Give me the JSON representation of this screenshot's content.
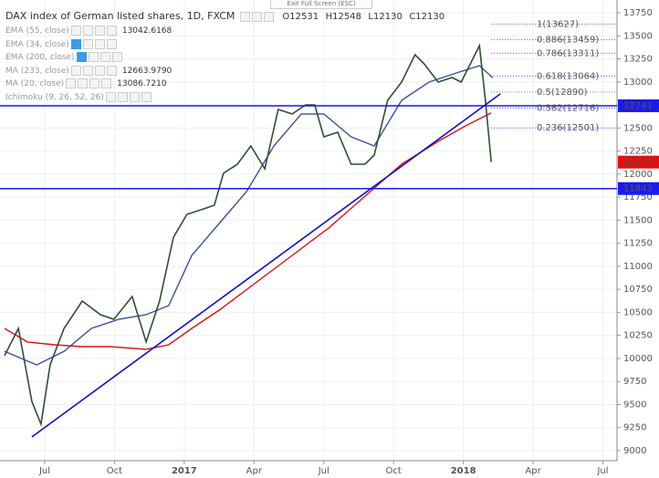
{
  "header": {
    "title": "DAX index of German listed shares, 1D, FXCM",
    "open": "O12531",
    "high": "H12548",
    "low": "L12130",
    "close": "C12130",
    "exit": "Exit Full Screen (ESC)"
  },
  "indicators": [
    {
      "name": "EMA (55, close)",
      "value": "13042.6168"
    },
    {
      "name": "EMA (34, close)"
    },
    {
      "name": "EMA (200, close)"
    },
    {
      "name": "MA (233, close)",
      "value": "12663.9790"
    },
    {
      "name": "MA (20, close)",
      "value": "13086.7210"
    },
    {
      "name": "Ichimoku (9, 26, 52, 26)"
    }
  ],
  "chart_data": {
    "type": "line",
    "xlim": [
      -8.33,
      106.63
    ],
    "ylim": [
      8891,
      13888.5
    ],
    "xticks": [
      {
        "value": 0,
        "label": "Jul"
      },
      {
        "value": 13,
        "label": "Oct"
      },
      {
        "value": 26,
        "label": "2017"
      },
      {
        "value": 39,
        "label": "Apr"
      },
      {
        "value": 52,
        "label": "Jul"
      },
      {
        "value": 65,
        "label": "Oct"
      },
      {
        "value": 78,
        "label": "2018"
      },
      {
        "value": 91,
        "label": "Apr"
      },
      {
        "value": 104,
        "label": "Jul"
      }
    ],
    "yticks": [
      9000,
      9250,
      9500,
      9750,
      10000,
      10250,
      10500,
      10750,
      11000,
      11250,
      11500,
      11750,
      12000,
      12250,
      12500,
      12750,
      13000,
      13250,
      13500,
      13750
    ],
    "grid": true,
    "series": [
      {
        "name": "Price",
        "color": "#2f4f2f",
        "x": [
          -7.5,
          -4.9,
          -2.4,
          -0.7,
          1.0,
          3.6,
          7.0,
          10.4,
          12.9,
          16.3,
          18.9,
          21.4,
          24.0,
          26.5,
          29.1,
          31.6,
          33.3,
          35.9,
          38.4,
          41.0,
          43.5,
          46.1,
          48.6,
          50.3,
          52.0,
          54.6,
          57.1,
          59.7,
          61.4,
          63.9,
          66.5,
          69.0,
          70.7,
          73.3,
          75.9,
          77.6,
          79.3,
          81.0,
          82.1,
          83.2
        ],
        "values": [
          10029,
          10326,
          9534,
          9287,
          9930,
          10326,
          10623,
          10474,
          10425,
          10672,
          10178,
          10623,
          11316,
          11563,
          11612,
          11662,
          12008,
          12107,
          12305,
          12058,
          12701,
          12652,
          12750,
          12750,
          12404,
          12454,
          12107,
          12107,
          12206,
          12800,
          12998,
          13295,
          13196,
          12998,
          13047,
          12998,
          13196,
          13394,
          12800,
          12130
        ]
      },
      {
        "name": "MA (233, close)",
        "color": "#e01010",
        "x": [
          -7.5,
          -3.2,
          1.9,
          7.0,
          12.1,
          18.9,
          23.1,
          27.4,
          32.5,
          39.3,
          46.1,
          52.9,
          59.7,
          66.5,
          73.3,
          78.4,
          83.2
        ],
        "values": [
          10326,
          10178,
          10148,
          10128,
          10128,
          10099,
          10148,
          10326,
          10524,
          10821,
          11118,
          11415,
          11761,
          12107,
          12355,
          12523,
          12664
        ]
      },
      {
        "name": "EMA (55, close)",
        "color": "#3c4ea0",
        "x": [
          -7.5,
          -1.5,
          3.6,
          8.7,
          13.8,
          18.9,
          23.1,
          27.4,
          32.5,
          37.6,
          42.7,
          47.8,
          52.0,
          57.1,
          61.4,
          66.5,
          71.6,
          76.7,
          81.0,
          83.5
        ],
        "values": [
          10078,
          9930,
          10078,
          10326,
          10425,
          10474,
          10573,
          11118,
          11464,
          11810,
          12305,
          12652,
          12652,
          12404,
          12305,
          12800,
          12998,
          13097,
          13176,
          13043
        ]
      }
    ],
    "trendline": {
      "color": "#1010d0",
      "x": [
        -2.4,
        84.9
      ],
      "values": [
        9148,
        12870
      ]
    },
    "price_tags": [
      {
        "value": 12741,
        "color": "#1a1aee",
        "line": true
      },
      {
        "value": 12130,
        "color": "#e01010",
        "line": false
      },
      {
        "value": 11843,
        "color": "#1a1aee",
        "line": true
      }
    ],
    "fib_levels": [
      {
        "value": 13627,
        "label": "1(13627)",
        "color": "#4444ee"
      },
      {
        "value": 13459,
        "label": "0.886(13459)",
        "color": "#4444ee"
      },
      {
        "value": 13311,
        "label": "0.786(13311)",
        "color": "#4444ee"
      },
      {
        "value": 13064,
        "label": "0.618(13064)",
        "color": "#4444ee"
      },
      {
        "value": 12890,
        "label": "0.5(12890)",
        "color": "#3aa03a"
      },
      {
        "value": 12716,
        "label": "0.382(12716)",
        "color": "#4444ee"
      },
      {
        "value": 12501,
        "label": "0.236(12501)",
        "color": "#4444ee"
      }
    ]
  }
}
